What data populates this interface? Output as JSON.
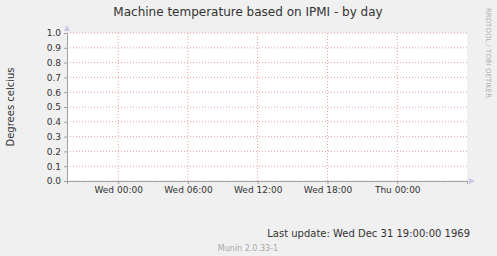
{
  "chart_data": {
    "type": "line",
    "title": "Machine temperature based on IPMI - by day",
    "y_label": "Degrees celcius",
    "annotations": [
      "RRDTOOL / TOBI OETIKER",
      "Last update: Wed Dec 31 19:00:00 1969",
      "Munin 2.0.33-1"
    ],
    "series": [],
    "xlim": [
      -4.4,
      30
    ],
    "xticks": [
      {
        "value": 0,
        "label": "Wed 00:00"
      },
      {
        "value": 6,
        "label": "Wed 06:00"
      },
      {
        "value": 12,
        "label": "Wed 12:00"
      },
      {
        "value": 18,
        "label": "Wed 18:00"
      },
      {
        "value": 24,
        "label": "Thu 00:00"
      }
    ],
    "ylim": [
      0,
      1
    ],
    "yticks": [
      {
        "value": 0,
        "label": "0.0"
      },
      0.1,
      0.2,
      0.3,
      0.4,
      0.5,
      0.6,
      0.7,
      0.8,
      0.9,
      {
        "value": 1,
        "label": "1.0"
      }
    ],
    "grid": true
  }
}
